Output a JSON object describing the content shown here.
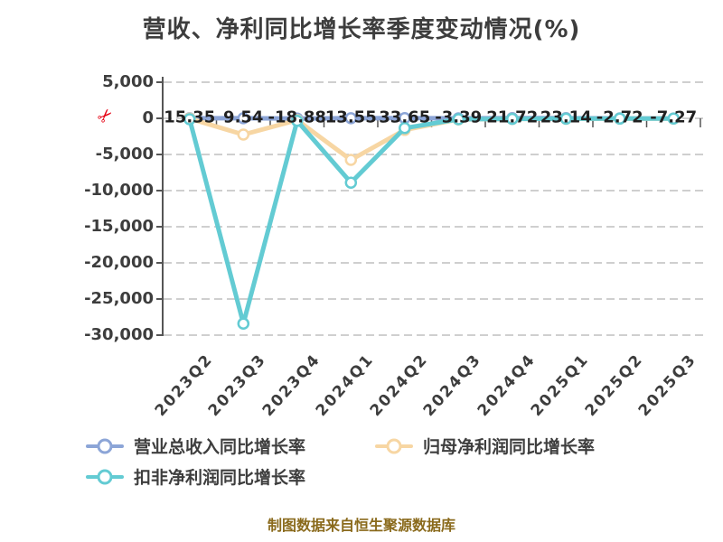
{
  "title": "营收、净利同比增长率季度变动情况(%)",
  "source_note": "制图数据来自恒生聚源数据库",
  "icons": {
    "axis_break": "✂",
    "legend_marker": "line-with-ring"
  },
  "theme": {
    "background": "#ffffff",
    "title_color": "#3d3d3d",
    "axis_color": "#555555",
    "grid_color": "#cfcfcf",
    "tick_label_color": "#3d3d3d",
    "data_label_color": "#202020",
    "legend_text_color": "#3e3e3e",
    "source_color": "#8a6a1c",
    "axis_break_color": "#e60012"
  },
  "chart_data": {
    "type": "line",
    "title": "营收、净利同比增长率季度变动情况(%)",
    "unit": "%",
    "categories": [
      "2023Q2",
      "2023Q3",
      "2023Q4",
      "2024Q1",
      "2024Q2",
      "2024Q3",
      "2024Q4",
      "2025Q1",
      "2025Q2",
      "2025Q3"
    ],
    "series": [
      {
        "name": "营业总收入同比增长率",
        "color": "#8ca5d7",
        "values": [
          15.35,
          9.54,
          -18.88,
          13.55,
          33.65,
          -3.39,
          21.72,
          23.14,
          -2.72,
          -7.27
        ],
        "data_labels": "shown"
      },
      {
        "name": "归母净利润同比增长率",
        "color": "#f7d6a3",
        "values": [
          -30,
          -2250,
          -250,
          -5750,
          -1600,
          -150,
          -80,
          -60,
          -50,
          -40
        ],
        "data_labels": "none"
      },
      {
        "name": "扣非净利润同比增长率",
        "color": "#63cbd3",
        "values": [
          -120,
          -28400,
          -350,
          -8900,
          -1350,
          -120,
          -70,
          -50,
          -40,
          -30
        ],
        "data_labels": "none"
      }
    ],
    "ylim": [
      -30000,
      5000
    ],
    "yticks": [
      {
        "value": 5000,
        "label": "5,000"
      },
      {
        "value": 0,
        "label": "0"
      },
      {
        "value": -5000,
        "label": "-5,000"
      },
      {
        "value": -10000,
        "label": "-10,000"
      },
      {
        "value": -15000,
        "label": "-15,000"
      },
      {
        "value": -20000,
        "label": "-20,000"
      },
      {
        "value": -25000,
        "label": "-25,000"
      },
      {
        "value": -30000,
        "label": "-30,000"
      }
    ],
    "grid": "horizontal-dashed",
    "legend_position": "bottom-left",
    "marker": "hollow-circle"
  }
}
